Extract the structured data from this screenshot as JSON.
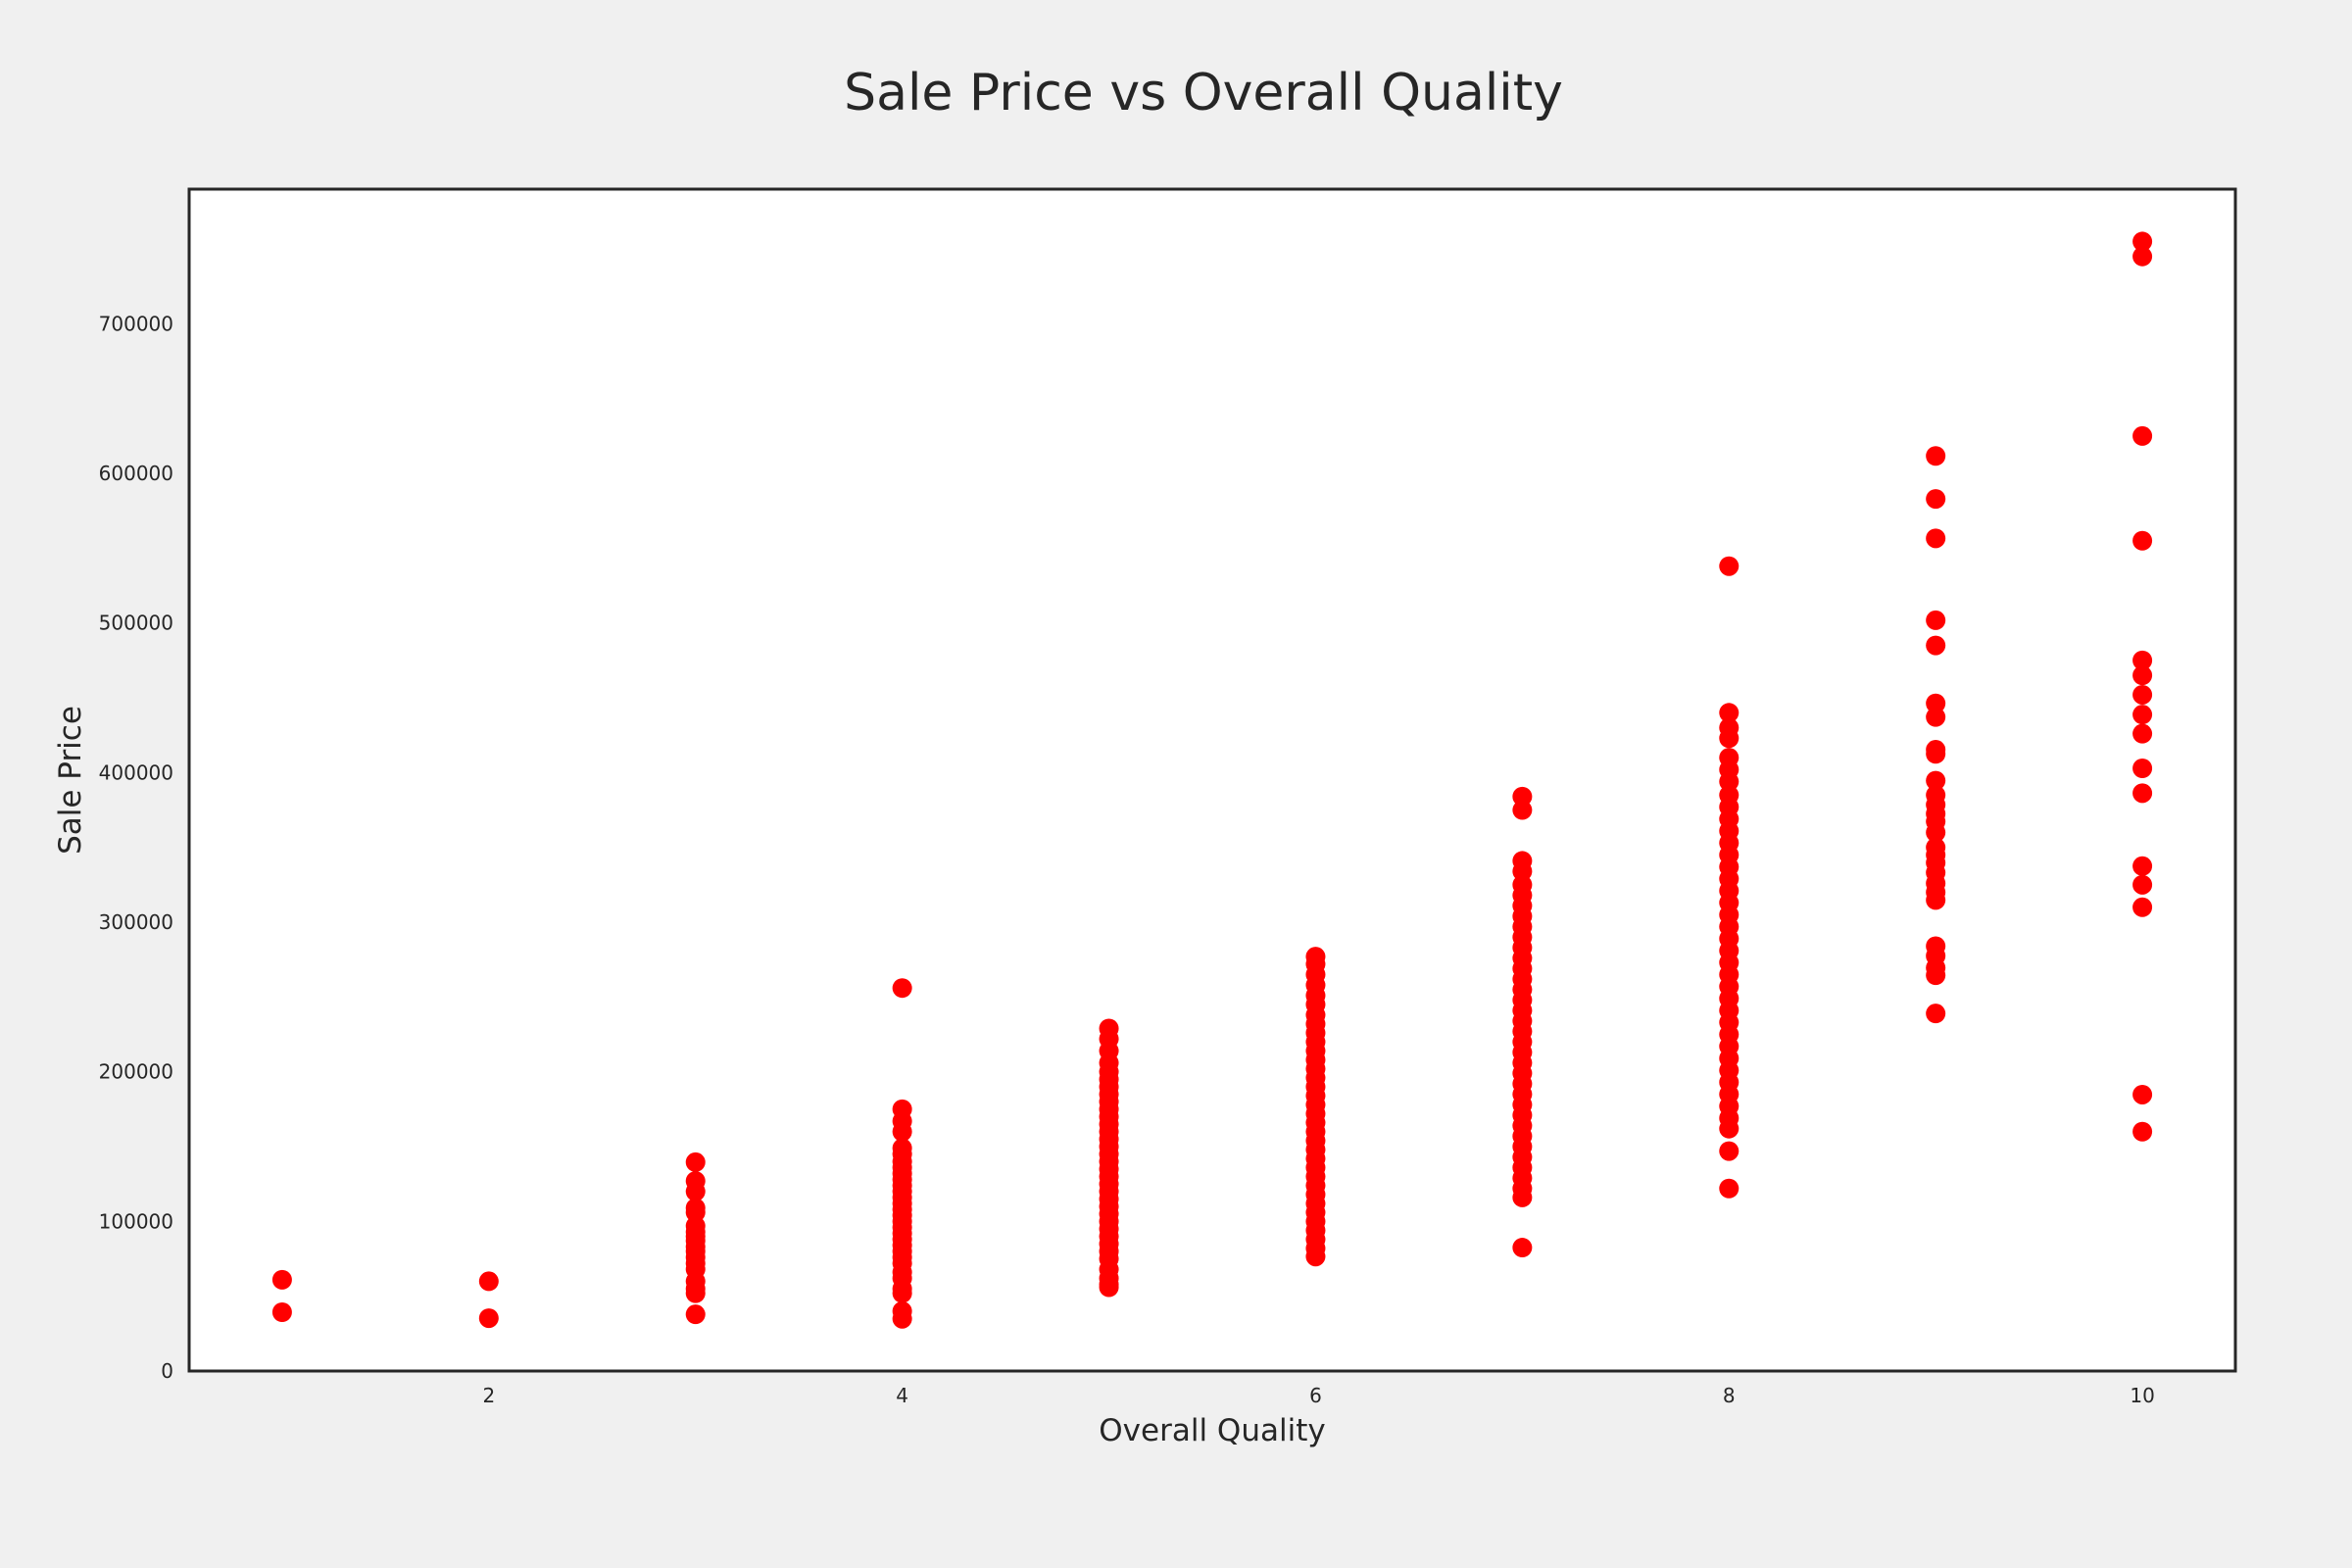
{
  "chart_data": {
    "type": "scatter",
    "title": "Sale Price vs Overall Quality",
    "xlabel": "Overall Quality",
    "ylabel": "Sale Price",
    "xlim": [
      0.55,
      10.45
    ],
    "ylim": [
      0,
      790000
    ],
    "x_ticks": [
      2,
      4,
      6,
      8,
      10
    ],
    "y_ticks": [
      0,
      100000,
      200000,
      300000,
      400000,
      500000,
      600000,
      700000
    ],
    "grid": false,
    "legend": "none",
    "marker_color": "#ff0000",
    "background_color": "#f0f0f0",
    "plot_background_color": "#ffffff",
    "series": [
      {
        "points": [
          [
            1,
            61000
          ],
          [
            1,
            39300
          ],
          [
            2,
            60000
          ],
          [
            2,
            35311
          ],
          [
            3,
            139600
          ],
          [
            3,
            127000
          ],
          [
            3,
            120000
          ],
          [
            3,
            109000
          ],
          [
            3,
            106000
          ],
          [
            3,
            97000
          ],
          [
            3,
            93000
          ],
          [
            3,
            90000
          ],
          [
            3,
            87000
          ],
          [
            3,
            83000
          ],
          [
            3,
            80000
          ],
          [
            3,
            76000
          ],
          [
            3,
            72000
          ],
          [
            3,
            68000
          ],
          [
            3,
            60000
          ],
          [
            3,
            55000
          ],
          [
            3,
            52000
          ],
          [
            3,
            37900
          ],
          [
            4,
            256000
          ],
          [
            4,
            175000
          ],
          [
            4,
            167000
          ],
          [
            4,
            160000
          ],
          [
            4,
            149000
          ],
          [
            4,
            145000
          ],
          [
            4,
            140000
          ],
          [
            4,
            136000
          ],
          [
            4,
            132000
          ],
          [
            4,
            128000
          ],
          [
            4,
            124000
          ],
          [
            4,
            120000
          ],
          [
            4,
            116000
          ],
          [
            4,
            112000
          ],
          [
            4,
            108000
          ],
          [
            4,
            104000
          ],
          [
            4,
            100000
          ],
          [
            4,
            96000
          ],
          [
            4,
            92000
          ],
          [
            4,
            88000
          ],
          [
            4,
            84000
          ],
          [
            4,
            80000
          ],
          [
            4,
            76000
          ],
          [
            4,
            72000
          ],
          [
            4,
            66000
          ],
          [
            4,
            62000
          ],
          [
            4,
            55000
          ],
          [
            4,
            52000
          ],
          [
            4,
            40000
          ],
          [
            4,
            34900
          ],
          [
            5,
            228950
          ],
          [
            5,
            222000
          ],
          [
            5,
            214000
          ],
          [
            5,
            206000
          ],
          [
            5,
            200000
          ],
          [
            5,
            195000
          ],
          [
            5,
            190000
          ],
          [
            5,
            185000
          ],
          [
            5,
            180000
          ],
          [
            5,
            175000
          ],
          [
            5,
            170000
          ],
          [
            5,
            165000
          ],
          [
            5,
            160000
          ],
          [
            5,
            155000
          ],
          [
            5,
            150000
          ],
          [
            5,
            145000
          ],
          [
            5,
            140000
          ],
          [
            5,
            135000
          ],
          [
            5,
            130000
          ],
          [
            5,
            125000
          ],
          [
            5,
            120000
          ],
          [
            5,
            115000
          ],
          [
            5,
            110000
          ],
          [
            5,
            105000
          ],
          [
            5,
            100000
          ],
          [
            5,
            95000
          ],
          [
            5,
            90000
          ],
          [
            5,
            85000
          ],
          [
            5,
            80000
          ],
          [
            5,
            75000
          ],
          [
            5,
            68000
          ],
          [
            5,
            62000
          ],
          [
            5,
            58000
          ],
          [
            5,
            55993
          ],
          [
            6,
            277000
          ],
          [
            6,
            272000
          ],
          [
            6,
            265000
          ],
          [
            6,
            258000
          ],
          [
            6,
            251000
          ],
          [
            6,
            245000
          ],
          [
            6,
            238000
          ],
          [
            6,
            232000
          ],
          [
            6,
            226000
          ],
          [
            6,
            220000
          ],
          [
            6,
            214000
          ],
          [
            6,
            208000
          ],
          [
            6,
            202000
          ],
          [
            6,
            196000
          ],
          [
            6,
            190000
          ],
          [
            6,
            184000
          ],
          [
            6,
            178000
          ],
          [
            6,
            172000
          ],
          [
            6,
            166000
          ],
          [
            6,
            160000
          ],
          [
            6,
            154000
          ],
          [
            6,
            148000
          ],
          [
            6,
            142000
          ],
          [
            6,
            136000
          ],
          [
            6,
            130000
          ],
          [
            6,
            124000
          ],
          [
            6,
            118000
          ],
          [
            6,
            112000
          ],
          [
            6,
            106000
          ],
          [
            6,
            100000
          ],
          [
            6,
            94000
          ],
          [
            6,
            88000
          ],
          [
            6,
            82000
          ],
          [
            6,
            76500
          ],
          [
            7,
            383970
          ],
          [
            7,
            375000
          ],
          [
            7,
            341000
          ],
          [
            7,
            334000
          ],
          [
            7,
            325000
          ],
          [
            7,
            318000
          ],
          [
            7,
            311000
          ],
          [
            7,
            304000
          ],
          [
            7,
            297000
          ],
          [
            7,
            290000
          ],
          [
            7,
            283000
          ],
          [
            7,
            276000
          ],
          [
            7,
            269000
          ],
          [
            7,
            262000
          ],
          [
            7,
            255000
          ],
          [
            7,
            248000
          ],
          [
            7,
            241000
          ],
          [
            7,
            234000
          ],
          [
            7,
            227000
          ],
          [
            7,
            220000
          ],
          [
            7,
            213000
          ],
          [
            7,
            206000
          ],
          [
            7,
            199000
          ],
          [
            7,
            192000
          ],
          [
            7,
            185000
          ],
          [
            7,
            178000
          ],
          [
            7,
            171000
          ],
          [
            7,
            164000
          ],
          [
            7,
            157000
          ],
          [
            7,
            150000
          ],
          [
            7,
            143000
          ],
          [
            7,
            136000
          ],
          [
            7,
            129000
          ],
          [
            7,
            122000
          ],
          [
            7,
            116000
          ],
          [
            7,
            82500
          ],
          [
            8,
            538000
          ],
          [
            8,
            440000
          ],
          [
            8,
            430000
          ],
          [
            8,
            423000
          ],
          [
            8,
            410000
          ],
          [
            8,
            402000
          ],
          [
            8,
            394000
          ],
          [
            8,
            385000
          ],
          [
            8,
            377000
          ],
          [
            8,
            369000
          ],
          [
            8,
            361000
          ],
          [
            8,
            353000
          ],
          [
            8,
            345000
          ],
          [
            8,
            337000
          ],
          [
            8,
            329000
          ],
          [
            8,
            321000
          ],
          [
            8,
            313000
          ],
          [
            8,
            305000
          ],
          [
            8,
            297000
          ],
          [
            8,
            289000
          ],
          [
            8,
            281000
          ],
          [
            8,
            273000
          ],
          [
            8,
            265000
          ],
          [
            8,
            257000
          ],
          [
            8,
            249000
          ],
          [
            8,
            241000
          ],
          [
            8,
            233000
          ],
          [
            8,
            225000
          ],
          [
            8,
            217000
          ],
          [
            8,
            209000
          ],
          [
            8,
            201000
          ],
          [
            8,
            193000
          ],
          [
            8,
            185000
          ],
          [
            8,
            177000
          ],
          [
            8,
            169000
          ],
          [
            8,
            162000
          ],
          [
            8,
            147000
          ],
          [
            8,
            122000
          ],
          [
            9,
            611657
          ],
          [
            9,
            582933
          ],
          [
            9,
            556581
          ],
          [
            9,
            501837
          ],
          [
            9,
            485000
          ],
          [
            9,
            446261
          ],
          [
            9,
            437154
          ],
          [
            9,
            415298
          ],
          [
            9,
            412500
          ],
          [
            9,
            394617
          ],
          [
            9,
            385000
          ],
          [
            9,
            378500
          ],
          [
            9,
            372500
          ],
          [
            9,
            367294
          ],
          [
            9,
            360000
          ],
          [
            9,
            350000
          ],
          [
            9,
            345000
          ],
          [
            9,
            339750
          ],
          [
            9,
            333168
          ],
          [
            9,
            326000
          ],
          [
            9,
            320000
          ],
          [
            9,
            314813
          ],
          [
            9,
            284000
          ],
          [
            9,
            277500
          ],
          [
            9,
            269500
          ],
          [
            9,
            264561
          ],
          [
            9,
            239000
          ],
          [
            10,
            755000
          ],
          [
            10,
            745000
          ],
          [
            10,
            625000
          ],
          [
            10,
            555000
          ],
          [
            10,
            475000
          ],
          [
            10,
            465000
          ],
          [
            10,
            452000
          ],
          [
            10,
            438780
          ],
          [
            10,
            426000
          ],
          [
            10,
            402861
          ],
          [
            10,
            386250
          ],
          [
            10,
            337500
          ],
          [
            10,
            325000
          ],
          [
            10,
            310000
          ],
          [
            10,
            184750
          ],
          [
            10,
            160000
          ]
        ]
      }
    ]
  }
}
